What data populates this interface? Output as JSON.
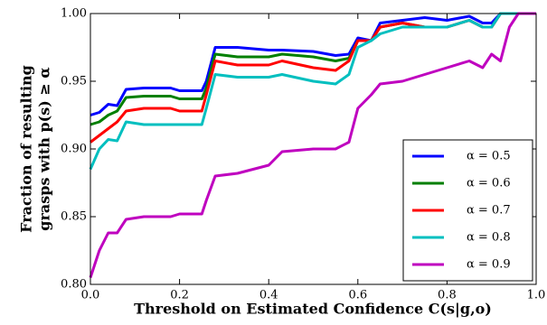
{
  "chart_data": {
    "type": "line",
    "xlabel": "Threshold on Estimated Confidence C(s|g,o)",
    "ylabel": [
      "Fraction of resulting",
      "grasps with p(s) ≥ α"
    ],
    "x": [
      0,
      0.02,
      0.04,
      0.06,
      0.08,
      0.12,
      0.18,
      0.2,
      0.25,
      0.26,
      0.28,
      0.33,
      0.4,
      0.43,
      0.5,
      0.55,
      0.58,
      0.6,
      0.63,
      0.65,
      0.7,
      0.75,
      0.8,
      0.85,
      0.88,
      0.9,
      0.92,
      0.94,
      0.96,
      1.0
    ],
    "series": [
      {
        "name": "α = 0.5",
        "color": "#0000ff",
        "values": [
          0.925,
          0.927,
          0.933,
          0.932,
          0.944,
          0.945,
          0.945,
          0.943,
          0.943,
          0.95,
          0.975,
          0.975,
          0.973,
          0.973,
          0.972,
          0.969,
          0.97,
          0.982,
          0.98,
          0.993,
          0.995,
          0.997,
          0.995,
          0.998,
          0.993,
          0.993,
          1.0,
          1.0,
          1.0,
          1.0
        ]
      },
      {
        "name": "α = 0.6",
        "color": "#007f00",
        "values": [
          0.918,
          0.92,
          0.925,
          0.928,
          0.938,
          0.939,
          0.939,
          0.937,
          0.937,
          0.945,
          0.97,
          0.968,
          0.968,
          0.97,
          0.968,
          0.965,
          0.967,
          0.98,
          0.98,
          0.99,
          0.993,
          0.99,
          0.99,
          0.995,
          0.99,
          0.99,
          1.0,
          1.0,
          1.0,
          1.0
        ]
      },
      {
        "name": "α = 0.7",
        "color": "#ff0000",
        "values": [
          0.905,
          0.91,
          0.915,
          0.92,
          0.928,
          0.93,
          0.93,
          0.928,
          0.928,
          0.94,
          0.965,
          0.962,
          0.962,
          0.965,
          0.96,
          0.958,
          0.965,
          0.98,
          0.98,
          0.99,
          0.993,
          0.99,
          0.99,
          0.995,
          0.99,
          0.99,
          1.0,
          1.0,
          1.0,
          1.0
        ]
      },
      {
        "name": "α = 0.8",
        "color": "#00bfbf",
        "values": [
          0.885,
          0.9,
          0.907,
          0.906,
          0.92,
          0.918,
          0.918,
          0.918,
          0.918,
          0.93,
          0.955,
          0.953,
          0.953,
          0.955,
          0.95,
          0.948,
          0.955,
          0.975,
          0.98,
          0.985,
          0.99,
          0.99,
          0.99,
          0.995,
          0.99,
          0.99,
          1.0,
          1.0,
          1.0,
          1.0
        ]
      },
      {
        "name": "α = 0.9",
        "color": "#bf00bf",
        "values": [
          0.805,
          0.825,
          0.838,
          0.838,
          0.848,
          0.85,
          0.85,
          0.852,
          0.852,
          0.862,
          0.88,
          0.882,
          0.888,
          0.898,
          0.9,
          0.9,
          0.905,
          0.93,
          0.94,
          0.948,
          0.95,
          0.955,
          0.96,
          0.965,
          0.96,
          0.97,
          0.965,
          0.99,
          1.0,
          1.0
        ]
      }
    ],
    "xlim": [
      0,
      1
    ],
    "ylim": [
      0.8,
      1.0
    ],
    "xticks": [
      {
        "value": 0,
        "label": "0.0"
      },
      {
        "value": 0.2,
        "label": "0.2"
      },
      {
        "value": 0.4,
        "label": "0.4"
      },
      {
        "value": 0.6,
        "label": "0.6"
      },
      {
        "value": 0.8,
        "label": "0.8"
      },
      {
        "value": 1.0,
        "label": "1.0"
      }
    ],
    "yticks": [
      {
        "value": 0.8,
        "label": "0.80"
      },
      {
        "value": 0.85,
        "label": "0.85"
      },
      {
        "value": 0.9,
        "label": "0.90"
      },
      {
        "value": 0.95,
        "label": "0.95"
      },
      {
        "value": 1.0,
        "label": "1.00"
      }
    ],
    "legend": "lower right"
  }
}
